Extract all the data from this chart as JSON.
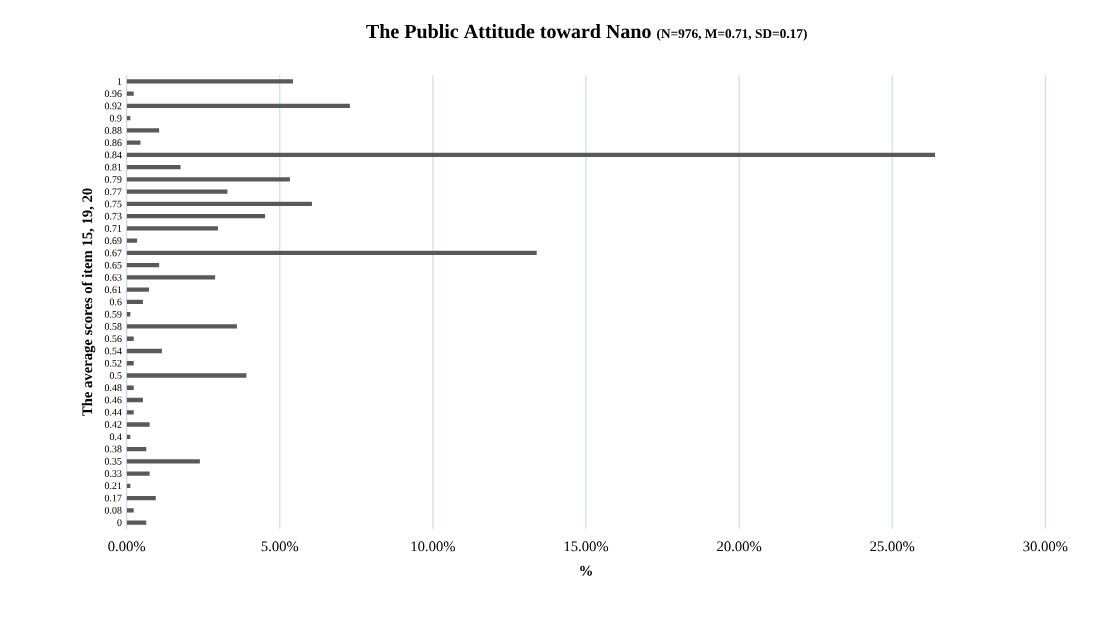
{
  "chart_data": {
    "type": "bar",
    "orientation": "horizontal",
    "title": "The Public Attitude toward Nano",
    "subtitle": "(N=976, M=0.71, SD=0.17)",
    "xlabel": "%",
    "ylabel": "The average scores of item 15, 19, 20",
    "categories": [
      "1",
      "0.96",
      "0.92",
      "0.9",
      "0.88",
      "0.86",
      "0.84",
      "0.81",
      "0.79",
      "0.77",
      "0.75",
      "0.73",
      "0.71",
      "0.69",
      "0.67",
      "0.65",
      "0.63",
      "0.61",
      "0.6",
      "0.59",
      "0.58",
      "0.56",
      "0.54",
      "0.52",
      "0.5",
      "0.48",
      "0.46",
      "0.44",
      "0.42",
      "0.4",
      "0.38",
      "0.35",
      "0.33",
      "0.21",
      "0.17",
      "0.08",
      "0"
    ],
    "values": [
      5.43,
      0.23,
      7.29,
      0.12,
      1.06,
      0.45,
      26.4,
      1.76,
      5.33,
      3.29,
      6.05,
      4.52,
      2.98,
      0.34,
      13.39,
      1.06,
      2.89,
      0.73,
      0.53,
      0.12,
      3.6,
      0.23,
      1.15,
      0.23,
      3.91,
      0.23,
      0.53,
      0.23,
      0.75,
      0.12,
      0.64,
      2.39,
      0.75,
      0.12,
      0.95,
      0.23,
      0.64
    ],
    "color": "#595959",
    "xlim": [
      0,
      30
    ],
    "xticks": [
      {
        "value": 0,
        "label": "0.00%"
      },
      {
        "value": 5,
        "label": "5.00%"
      },
      {
        "value": 10,
        "label": "10.00%"
      },
      {
        "value": 15,
        "label": "15.00%"
      },
      {
        "value": 20,
        "label": "20.00%"
      },
      {
        "value": 25,
        "label": "25.00%"
      },
      {
        "value": 30,
        "label": "30.00%"
      }
    ],
    "grid": "x"
  }
}
